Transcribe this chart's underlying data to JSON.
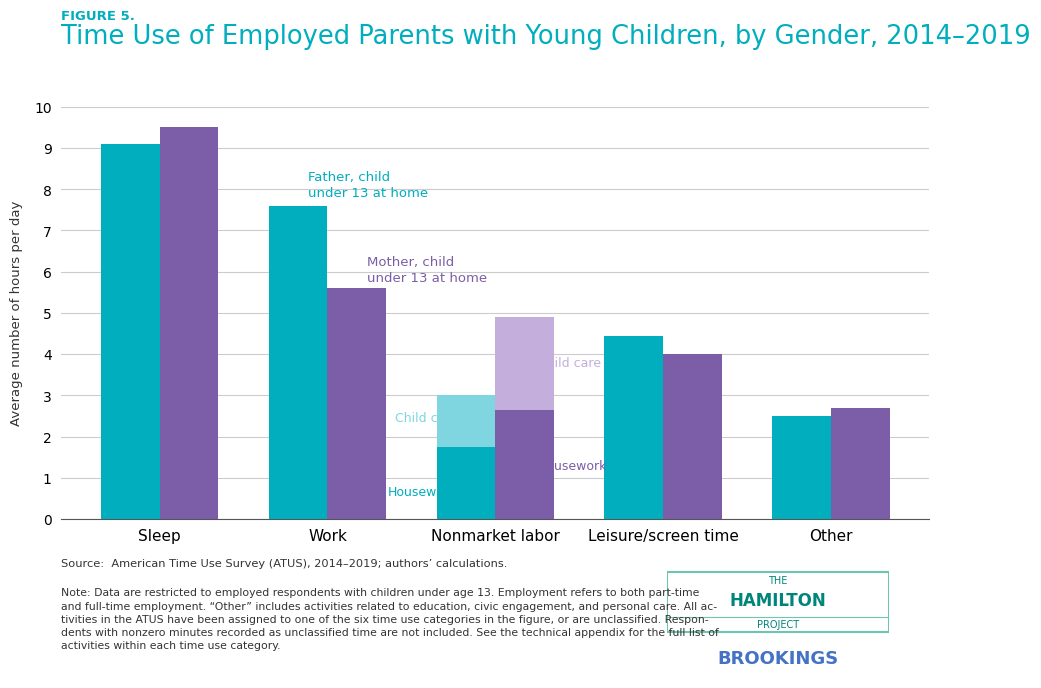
{
  "figure_label": "FIGURE 5.",
  "title": "Time Use of Employed Parents with Young Children, by Gender, 2014–2019",
  "categories": [
    "Sleep",
    "Work",
    "Nonmarket labor",
    "Leisure/screen time",
    "Other"
  ],
  "father_color": "#00AEBD",
  "mother_color": "#7B5EA7",
  "father_childcare_color": "#7FD6E0",
  "mother_childcare_color": "#C4AEDC",
  "father_values": [
    9.1,
    7.6,
    0.0,
    4.45,
    2.5
  ],
  "mother_values": [
    9.5,
    5.6,
    0.0,
    4.0,
    2.7
  ],
  "father_housework": 1.75,
  "father_childcare_val": 1.25,
  "mother_housework": 2.65,
  "mother_childcare_val": 2.25,
  "ylabel": "Average number of hours per day",
  "ylim": [
    0,
    10
  ],
  "yticks": [
    0,
    1,
    2,
    3,
    4,
    5,
    6,
    7,
    8,
    9,
    10
  ],
  "father_label": "Father, child\nunder 13 at home",
  "mother_label": "Mother, child\nunder 13 at home",
  "source_text": "Source:  American Time Use Survey (ATUS), 2014–2019; authors’ calculations.",
  "note_text": "Note: Data are restricted to employed respondents with children under age 13. Employment refers to both part-time\nand full-time employment. “Other” includes activities related to education, civic engagement, and personal care. All ac-\ntivities in the ATUS have been assigned to one of the six time use categories in the figure, or are unclassified. Respon-\ndents with nonzero minutes recorded as unclassified time are not included. See the technical appendix for the full list of\nactivities within each time use category.",
  "title_color": "#00AEBD",
  "figure_label_color": "#00AEBD",
  "background_color": "#FFFFFF",
  "grid_color": "#CCCCCC",
  "bar_width": 0.35,
  "hamilton_box_color": "#6DC6B0",
  "hamilton_text_color": "#00857A",
  "brookings_color": "#4472C4"
}
